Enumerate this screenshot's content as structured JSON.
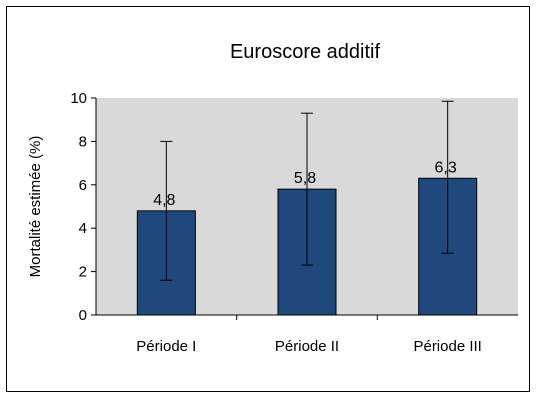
{
  "chart_data": {
    "type": "bar",
    "title": "Euroscore additif",
    "xlabel": "",
    "ylabel": "Mortalité estimée (%)",
    "categories": [
      "Période I",
      "Période II",
      "Période III"
    ],
    "values": [
      4.8,
      5.8,
      6.3
    ],
    "value_labels": [
      "4,8",
      "5,8",
      "6,3"
    ],
    "error_low": [
      1.6,
      2.3,
      2.85
    ],
    "error_high": [
      8.0,
      9.3,
      9.85
    ],
    "ylim": [
      0,
      10
    ],
    "yticks": [
      "0",
      "2",
      "4",
      "6",
      "8",
      "10"
    ],
    "grid": false,
    "colors": {
      "bar": "#1f497d",
      "plot_area": "#d9d9d9"
    }
  }
}
